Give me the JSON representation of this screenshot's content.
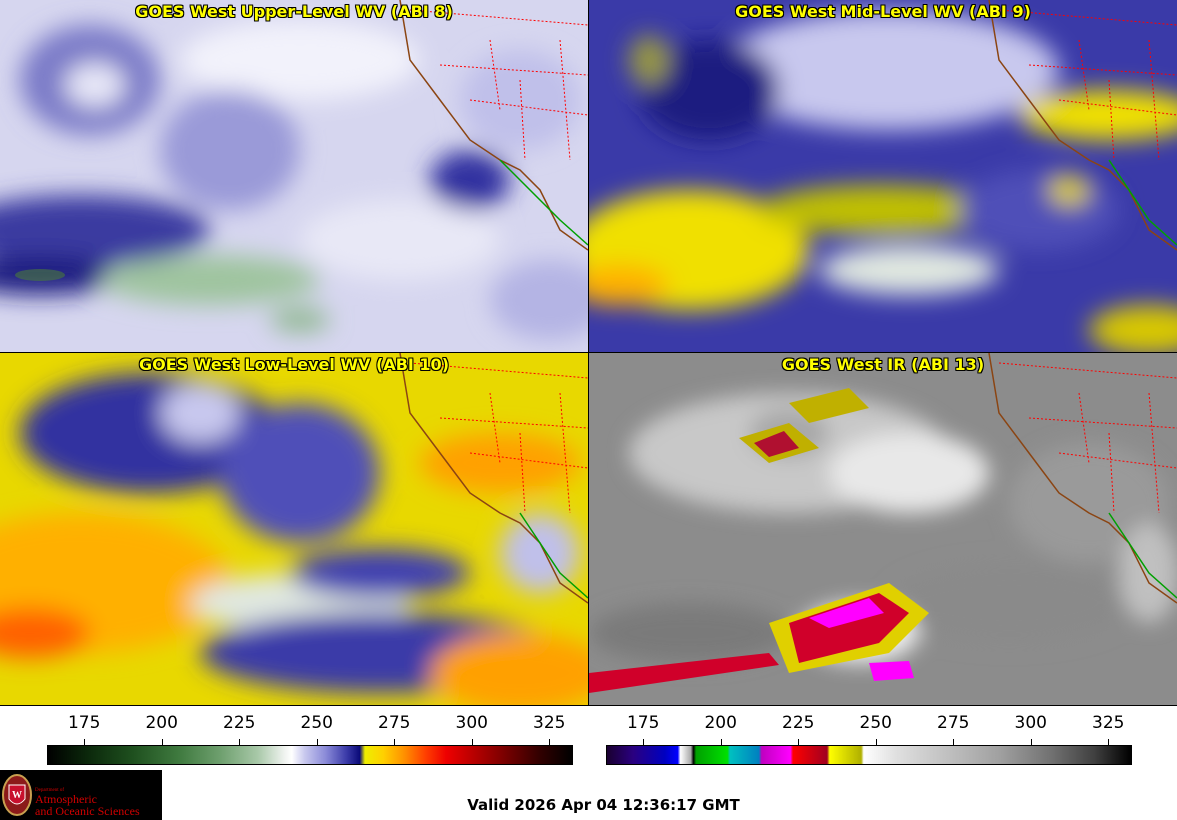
{
  "panels": [
    {
      "id": "p1",
      "title": "GOES West Upper-Level WV (ABI 8)",
      "product": "water-vapor-upper"
    },
    {
      "id": "p2",
      "title": "GOES West Mid-Level WV (ABI 9)",
      "product": "water-vapor-mid"
    },
    {
      "id": "p3",
      "title": "GOES West Low-Level WV (ABI 10)",
      "product": "water-vapor-low"
    },
    {
      "id": "p4",
      "title": "GOES West IR (ABI 13)",
      "product": "infrared"
    }
  ],
  "colorbars": {
    "wv": {
      "ticks": [
        "175",
        "200",
        "225",
        "250",
        "275",
        "300",
        "325"
      ],
      "range": [
        163,
        332
      ]
    },
    "ir": {
      "ticks": [
        "175",
        "200",
        "225",
        "250",
        "275",
        "300",
        "325"
      ],
      "range": [
        163,
        332
      ]
    }
  },
  "logo": {
    "dept": "Department of",
    "line1": "Atmospheric",
    "line2": "and Oceanic Sciences"
  },
  "valid_time": "Valid 2026 Apr 04 12:36:17 GMT",
  "colors": {
    "title": "#ffff00",
    "state_borders": "#ff0000",
    "coastline": "#8b4513",
    "mexico_coast": "#00a000"
  }
}
